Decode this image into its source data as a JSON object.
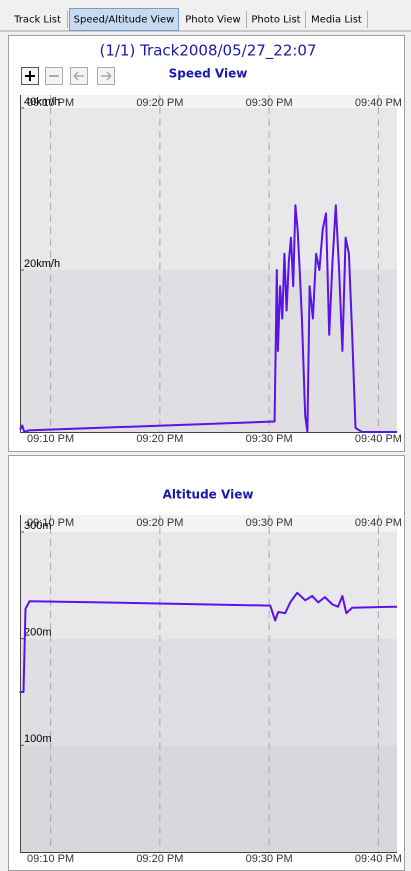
{
  "tabs": [
    "Track List",
    "Speed/Altitude View",
    "Photo View",
    "Photo List",
    "Media List"
  ],
  "active_tab": 1,
  "track_title": "(1/1) Track2008/05/27_22:07",
  "chart_data": [
    {
      "type": "line",
      "title": "Speed View",
      "color": "#5a14e6",
      "x": [
        7.2,
        7.4,
        7.6,
        8.0,
        30.5,
        30.7,
        30.8,
        31.0,
        31.2,
        31.4,
        31.6,
        31.8,
        32.0,
        32.2,
        32.4,
        32.6,
        32.8,
        33.0,
        33.3,
        33.5,
        33.7,
        34.0,
        34.3,
        34.6,
        34.9,
        35.2,
        35.5,
        35.8,
        36.1,
        36.4,
        36.7,
        37.0,
        37.3,
        37.6,
        37.9,
        38.5,
        41.7
      ],
      "values": [
        0.3,
        0.8,
        0,
        0.2,
        1.3,
        20,
        10,
        18,
        14,
        22,
        15,
        21,
        24,
        18,
        28,
        25,
        20,
        14,
        2,
        0,
        18,
        14,
        22,
        20,
        25,
        27,
        12,
        21,
        28,
        20,
        10,
        24,
        22,
        12,
        0.5,
        0,
        0
      ],
      "xlim": [
        7.2,
        41.7
      ],
      "xticks": [
        {
          "value": 10,
          "label": "09:10 PM"
        },
        {
          "value": 20,
          "label": "09:20 PM"
        },
        {
          "value": 30,
          "label": "09:30 PM"
        },
        {
          "value": 40,
          "label": "09:40 PM"
        }
      ],
      "ylim": [
        0,
        40
      ],
      "yticks": [
        {
          "value": 20,
          "label": "20km/h"
        },
        {
          "value": 40,
          "label": "40km/h"
        }
      ]
    },
    {
      "type": "line",
      "title": "Altitude View",
      "color": "#5a14e6",
      "x": [
        7.16,
        7.52,
        7.7,
        8.07,
        14.5,
        30.1,
        30.55,
        30.83,
        31.47,
        31.93,
        32.57,
        33.3,
        33.94,
        34.5,
        35.1,
        35.8,
        36.3,
        36.7,
        37.06,
        37.6,
        41.7
      ],
      "values": [
        150,
        150,
        228,
        235,
        234,
        231,
        217,
        225,
        224,
        234,
        243,
        236,
        240,
        234,
        239,
        232,
        230,
        240,
        224,
        229,
        230
      ],
      "xlim": [
        7.2,
        41.7
      ],
      "xticks": [
        {
          "value": 10,
          "label": "09:10 PM"
        },
        {
          "value": 20,
          "label": "09:20 PM"
        },
        {
          "value": 30,
          "label": "09:30 PM"
        },
        {
          "value": 40,
          "label": "09:40 PM"
        }
      ],
      "ylim": [
        0,
        300
      ],
      "yticks": [
        {
          "value": 100,
          "label": "100m"
        },
        {
          "value": 200,
          "label": "200m"
        },
        {
          "value": 300,
          "label": "300m"
        }
      ]
    }
  ]
}
